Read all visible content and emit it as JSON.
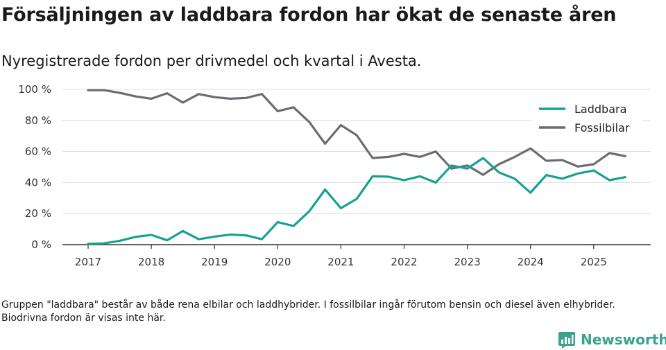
{
  "chart_data": {
    "type": "line",
    "title": "Försäljningen av laddbara fordon har ökat de senaste åren",
    "subtitle": "Nyregistrerade fordon per drivmedel och kvartal i Avesta.",
    "xlabel": "",
    "ylabel": "",
    "ylim": [
      0,
      100
    ],
    "yticks": [
      "0 %",
      "20 %",
      "40 %",
      "60 %",
      "80 %",
      "100 %"
    ],
    "ytick_values": [
      0,
      20,
      40,
      60,
      80,
      100
    ],
    "xticks": [
      "2017",
      "2018",
      "2019",
      "2020",
      "2021",
      "2022",
      "2023",
      "2024",
      "2025"
    ],
    "x_start_year": 2017,
    "x_end": 2025.9,
    "series": [
      {
        "name": "Laddbara",
        "color": "#15a196",
        "values": [
          0.5,
          0.8,
          2.5,
          5,
          6.3,
          2.8,
          8.8,
          3.5,
          5.2,
          6.5,
          6,
          3.5,
          14.5,
          12,
          21.5,
          35.5,
          23.5,
          29.5,
          44,
          43.8,
          41.5,
          44,
          40,
          51,
          49,
          55.8,
          46.5,
          42.5,
          33.5,
          44.8,
          42.5,
          45.8,
          47.8,
          41.5,
          43.5
        ]
      },
      {
        "name": "Fossilbilar",
        "color": "#6c6b72",
        "values": [
          99.5,
          99.5,
          97.8,
          95.5,
          94,
          97.5,
          91.5,
          97,
          95,
          94,
          94.5,
          97,
          86,
          88.5,
          79,
          65,
          77,
          70.5,
          55.8,
          56.5,
          58.5,
          56.5,
          60,
          49,
          51,
          45,
          51.8,
          56.5,
          62,
          54,
          54.5,
          50.3,
          51.8,
          59,
          57
        ]
      }
    ],
    "legend": "top-right",
    "grid": true
  },
  "footnote": "Gruppen \"laddbara\" består av både rena elbilar och laddhybrider. I fossilbilar ingår förutom bensin och diesel även elhybrider. Biodrivna fordon är visas inte här.",
  "brand": {
    "name": "Newsworthy",
    "color": "#3aa28f",
    "icon": "newsworthy-logo-icon"
  }
}
